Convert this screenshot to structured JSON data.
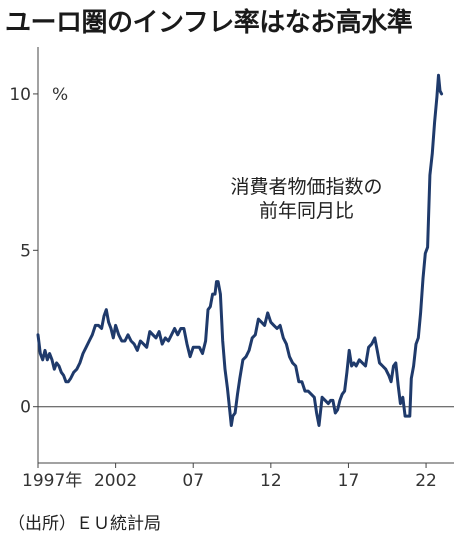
{
  "chart_data": {
    "type": "line",
    "title": "ユーロ圏のインフレ率はなお高水準",
    "annotation": [
      "消費者物価指数の",
      "前年同月比"
    ],
    "ylabel": "",
    "y_unit": "%",
    "ylim": [
      -1.8,
      11.5
    ],
    "yticks": [
      0,
      5,
      10
    ],
    "xlim": [
      1997,
      2023.8
    ],
    "xticks": [
      1997,
      2002,
      2007,
      2012,
      2017,
      2022
    ],
    "xtick_labels": [
      "1997年",
      "2002",
      "07",
      "12",
      "17",
      "22"
    ],
    "grid": false,
    "zero_line": true,
    "source": "（出所）ＥＵ統計局",
    "series": [
      {
        "color": "#1f3a6b",
        "x": [
          1997.0,
          1997.15,
          1997.3,
          1997.45,
          1997.6,
          1997.75,
          1997.9,
          1998.05,
          1998.2,
          1998.35,
          1998.5,
          1998.65,
          1998.8,
          1998.95,
          1999.1,
          1999.3,
          1999.5,
          1999.7,
          1999.9,
          2000.1,
          2000.3,
          2000.5,
          2000.7,
          2000.9,
          2001.1,
          2001.25,
          2001.4,
          2001.55,
          2001.7,
          2001.85,
          2002.0,
          2002.2,
          2002.4,
          2002.6,
          2002.8,
          2003.0,
          2003.2,
          2003.4,
          2003.6,
          2003.8,
          2004.0,
          2004.2,
          2004.4,
          2004.6,
          2004.8,
          2005.0,
          2005.2,
          2005.4,
          2005.6,
          2005.8,
          2006.0,
          2006.2,
          2006.4,
          2006.6,
          2006.8,
          2007.0,
          2007.2,
          2007.4,
          2007.6,
          2007.8,
          2007.95,
          2008.1,
          2008.25,
          2008.4,
          2008.5,
          2008.6,
          2008.75,
          2008.9,
          2009.05,
          2009.2,
          2009.35,
          2009.45,
          2009.55,
          2009.7,
          2009.85,
          2010.0,
          2010.2,
          2010.4,
          2010.6,
          2010.8,
          2011.0,
          2011.2,
          2011.4,
          2011.6,
          2011.8,
          2012.0,
          2012.2,
          2012.4,
          2012.6,
          2012.8,
          2013.0,
          2013.2,
          2013.4,
          2013.6,
          2013.8,
          2014.0,
          2014.2,
          2014.4,
          2014.6,
          2014.8,
          2014.95,
          2015.1,
          2015.3,
          2015.5,
          2015.7,
          2015.85,
          2016.0,
          2016.15,
          2016.3,
          2016.45,
          2016.6,
          2016.75,
          2016.9,
          2017.05,
          2017.2,
          2017.35,
          2017.5,
          2017.7,
          2017.9,
          2018.1,
          2018.3,
          2018.5,
          2018.7,
          2018.85,
          2019.0,
          2019.2,
          2019.4,
          2019.6,
          2019.75,
          2019.9,
          2020.05,
          2020.2,
          2020.35,
          2020.5,
          2020.65,
          2020.8,
          2020.95,
          2021.05,
          2021.2,
          2021.35,
          2021.5,
          2021.65,
          2021.8,
          2021.95,
          2022.1,
          2022.25,
          2022.4,
          2022.55,
          2022.7,
          2022.8,
          2022.9,
          2023.0
        ],
        "values": [
          2.3,
          1.7,
          1.5,
          1.8,
          1.5,
          1.7,
          1.5,
          1.2,
          1.4,
          1.3,
          1.1,
          1.0,
          0.8,
          0.8,
          0.9,
          1.1,
          1.2,
          1.4,
          1.7,
          1.9,
          2.1,
          2.3,
          2.6,
          2.6,
          2.5,
          2.9,
          3.1,
          2.7,
          2.5,
          2.2,
          2.6,
          2.3,
          2.1,
          2.1,
          2.3,
          2.1,
          2.0,
          1.8,
          2.1,
          2.0,
          1.9,
          2.4,
          2.3,
          2.2,
          2.4,
          2.0,
          2.2,
          2.1,
          2.3,
          2.5,
          2.3,
          2.5,
          2.5,
          2.0,
          1.6,
          1.9,
          1.9,
          1.9,
          1.7,
          2.1,
          3.1,
          3.2,
          3.6,
          3.6,
          4.0,
          4.0,
          3.6,
          2.1,
          1.2,
          0.6,
          -0.1,
          -0.6,
          -0.3,
          -0.2,
          0.4,
          0.9,
          1.5,
          1.6,
          1.8,
          2.2,
          2.3,
          2.8,
          2.7,
          2.6,
          3.0,
          2.7,
          2.6,
          2.5,
          2.6,
          2.2,
          2.0,
          1.6,
          1.4,
          1.3,
          0.8,
          0.8,
          0.5,
          0.5,
          0.4,
          0.3,
          -0.2,
          -0.6,
          0.3,
          0.2,
          0.1,
          0.2,
          0.2,
          -0.2,
          -0.1,
          0.2,
          0.4,
          0.5,
          1.1,
          1.8,
          1.3,
          1.4,
          1.3,
          1.5,
          1.4,
          1.3,
          1.9,
          2.0,
          2.2,
          1.8,
          1.4,
          1.3,
          1.2,
          1.0,
          0.8,
          1.3,
          1.4,
          0.7,
          0.1,
          0.3,
          -0.3,
          -0.3,
          -0.3,
          0.9,
          1.3,
          2.0,
          2.2,
          3.0,
          4.1,
          4.9,
          5.1,
          7.4,
          8.1,
          9.1,
          9.9,
          10.6,
          10.1,
          10.0
        ]
      }
    ]
  }
}
